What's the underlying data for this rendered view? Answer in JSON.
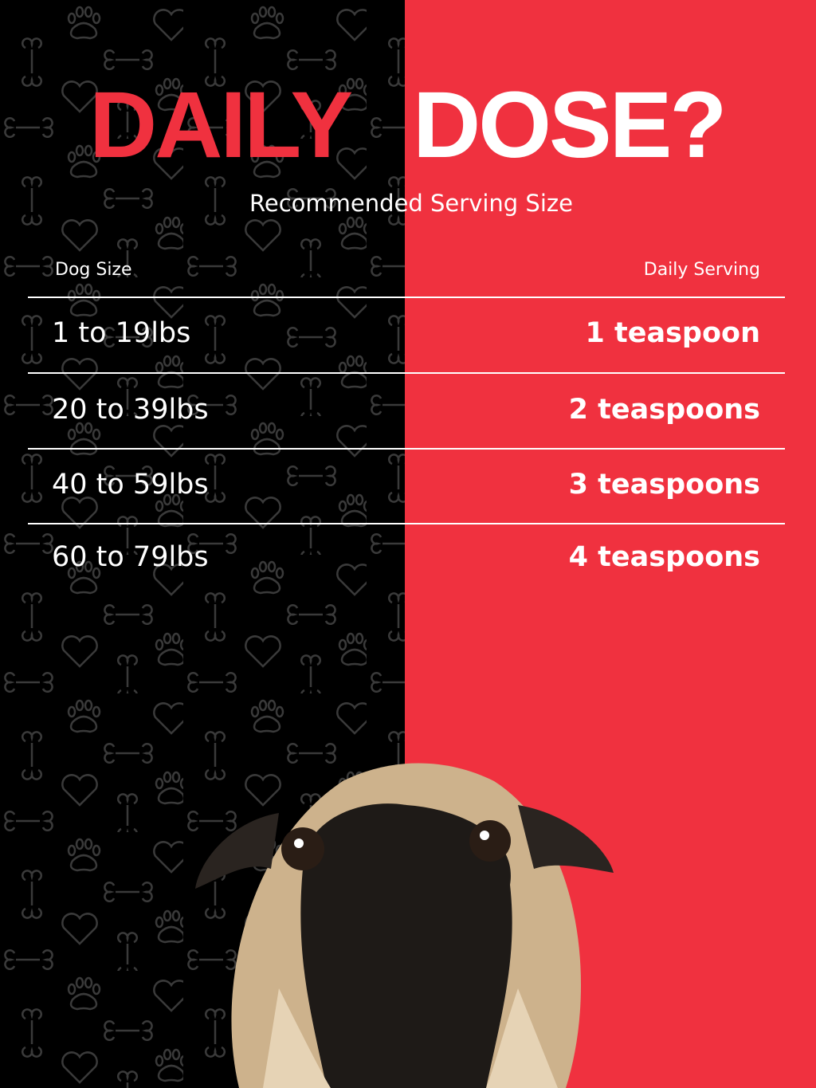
{
  "title": {
    "word1": "DAILY",
    "word2": "DOSE?"
  },
  "subtitle": "Recommended Serving Size",
  "table": {
    "headers": {
      "left": "Dog Size",
      "right": "Daily Serving"
    },
    "rows": [
      {
        "size": "1 to 19lbs",
        "serving": "1 teaspoon"
      },
      {
        "size": "20 to 39lbs",
        "serving": "2 teaspoons"
      },
      {
        "size": "40 to 59lbs",
        "serving": "3 teaspoons"
      },
      {
        "size": "60 to 79lbs",
        "serving": "4 teaspoons"
      }
    ]
  },
  "colors": {
    "accent_red": "#f0313f",
    "background_black": "#000000",
    "pattern_gray": "#3a3a3a"
  },
  "icons": [
    "paw-icon",
    "heart-icon",
    "bone-icon"
  ],
  "image": "pug-photo"
}
